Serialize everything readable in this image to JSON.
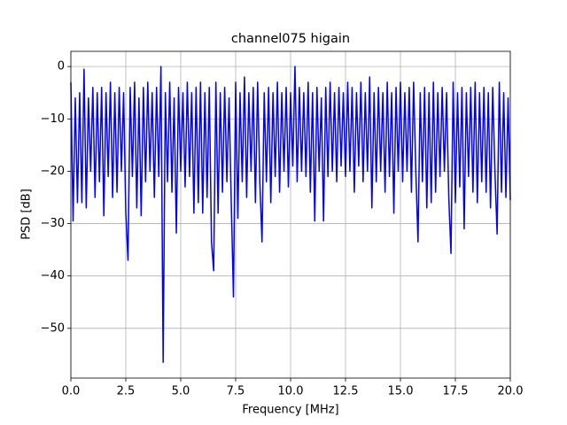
{
  "chart_data": {
    "type": "line",
    "title": "channel075 higain",
    "x_label": "Frequency [MHz]",
    "y_label": "PSD [dB]",
    "grid": true,
    "xlim": [
      0,
      20
    ],
    "ylim": [
      -59.5,
      2.9
    ],
    "xticks": [
      {
        "value": 0,
        "label": "0.0"
      },
      2.5,
      {
        "value": 5,
        "label": "5.0"
      },
      7.5,
      {
        "value": 10,
        "label": "10.0"
      },
      12.5,
      {
        "value": 15,
        "label": "15.0"
      },
      17.5,
      {
        "value": 20,
        "label": "20.0"
      }
    ],
    "yticks": [
      0,
      {
        "value": -10,
        "label": "−10"
      },
      {
        "value": -20,
        "label": "−20"
      },
      {
        "value": -30,
        "label": "−30"
      },
      {
        "value": -40,
        "label": "−40"
      },
      {
        "value": -50,
        "label": "−50"
      }
    ],
    "series": [
      {
        "color": "#0000ff",
        "x": [
          0.0,
          0.1,
          0.2,
          0.3,
          0.4,
          0.5,
          0.6,
          0.7,
          0.8,
          0.9,
          1.0,
          1.1,
          1.2,
          1.3,
          1.4,
          1.5,
          1.6,
          1.7,
          1.8,
          1.9,
          2.0,
          2.1,
          2.2,
          2.3,
          2.4,
          2.5,
          2.6,
          2.7,
          2.8,
          2.9,
          3.0,
          3.1,
          3.2,
          3.3,
          3.4,
          3.5,
          3.6,
          3.7,
          3.8,
          3.9,
          4.0,
          4.1,
          4.2,
          4.3,
          4.4,
          4.5,
          4.6,
          4.7,
          4.8,
          4.9,
          5.0,
          5.1,
          5.2,
          5.3,
          5.4,
          5.5,
          5.6,
          5.7,
          5.8,
          5.9,
          6.0,
          6.1,
          6.2,
          6.3,
          6.4,
          6.5,
          6.6,
          6.7,
          6.8,
          6.9,
          7.0,
          7.1,
          7.2,
          7.3,
          7.4,
          7.5,
          7.6,
          7.7,
          7.8,
          7.9,
          8.0,
          8.1,
          8.2,
          8.3,
          8.4,
          8.5,
          8.6,
          8.7,
          8.8,
          8.9,
          9.0,
          9.1,
          9.2,
          9.3,
          9.4,
          9.5,
          9.6,
          9.7,
          9.8,
          9.9,
          10.0,
          10.1,
          10.2,
          10.3,
          10.4,
          10.5,
          10.6,
          10.7,
          10.8,
          10.9,
          11.0,
          11.1,
          11.2,
          11.3,
          11.4,
          11.5,
          11.6,
          11.7,
          11.8,
          11.9,
          12.0,
          12.1,
          12.2,
          12.3,
          12.4,
          12.5,
          12.6,
          12.7,
          12.8,
          12.9,
          13.0,
          13.1,
          13.2,
          13.3,
          13.4,
          13.5,
          13.6,
          13.7,
          13.8,
          13.9,
          14.0,
          14.1,
          14.2,
          14.3,
          14.4,
          14.5,
          14.6,
          14.7,
          14.8,
          14.9,
          15.0,
          15.1,
          15.2,
          15.3,
          15.4,
          15.5,
          15.6,
          15.7,
          15.8,
          15.9,
          16.0,
          16.1,
          16.2,
          16.3,
          16.4,
          16.5,
          16.6,
          16.7,
          16.8,
          16.9,
          17.0,
          17.1,
          17.2,
          17.3,
          17.4,
          17.5,
          17.6,
          17.7,
          17.8,
          17.9,
          18.0,
          18.1,
          18.2,
          18.3,
          18.4,
          18.5,
          18.6,
          18.7,
          18.8,
          18.9,
          19.0,
          19.1,
          19.2,
          19.3,
          19.4,
          19.5,
          19.6,
          19.7,
          19.8,
          19.9,
          20.0
        ],
        "values": [
          -3,
          -29.5,
          -6,
          -26,
          -5,
          -26,
          -0.5,
          -27,
          -6,
          -20,
          -4,
          -25,
          -5,
          -22,
          -4,
          -28.5,
          -5,
          -21,
          -3,
          -25,
          -5,
          -24,
          -4,
          -20,
          -5,
          -28,
          -37,
          -4,
          -21,
          -3,
          -27,
          -6,
          -28.5,
          -4,
          -22,
          -3,
          -20,
          -5,
          -25,
          -4,
          -21,
          0,
          -56.5,
          -5,
          -22,
          -3,
          -24,
          -6,
          -31.8,
          -4,
          -20,
          -5,
          -23,
          -3,
          -21,
          -5,
          -28,
          -4,
          -26,
          -3,
          -28,
          -5,
          -25,
          -4,
          -33.5,
          -39,
          -3,
          -28,
          -5,
          -24,
          -4,
          -22,
          -6,
          -26,
          -44,
          -3,
          -29,
          -5,
          -22,
          -2,
          -25,
          -5,
          -20,
          -4,
          -26,
          -3,
          -22,
          -33.5,
          -5,
          -22,
          -4,
          -26,
          -5,
          -21,
          -3,
          -24,
          -5,
          -20,
          -4,
          -23,
          -5,
          -19,
          0,
          -22,
          -4,
          -20,
          -5,
          -21,
          -3,
          -24,
          -5,
          -29.5,
          -4,
          -20,
          -6,
          -29.5,
          -4,
          -21,
          -3,
          -20,
          -5,
          -22,
          -4,
          -19,
          -5,
          -21,
          -3,
          -20,
          -4,
          -24,
          -5,
          -19,
          -3,
          -22,
          -5,
          -20,
          -2,
          -27,
          -5,
          -22,
          -4,
          -20,
          -5,
          -24,
          -3,
          -21,
          -5,
          -28,
          -4,
          -20,
          -3,
          -22,
          -5,
          -20,
          -4,
          -24,
          -3,
          -20,
          -33.5,
          -5,
          -22,
          -4,
          -27,
          -5,
          -26,
          -3,
          -24,
          -5,
          -21,
          -4,
          -20,
          -5,
          -25,
          -35.7,
          -3,
          -26,
          -5,
          -23,
          -4,
          -31,
          -5,
          -21,
          -4,
          -24,
          -3,
          -26,
          -5,
          -22,
          -4,
          -24,
          -5,
          -27,
          -4,
          -20,
          -32,
          -3,
          -24,
          -5,
          -25,
          -6,
          -25.5
        ]
      }
    ]
  }
}
